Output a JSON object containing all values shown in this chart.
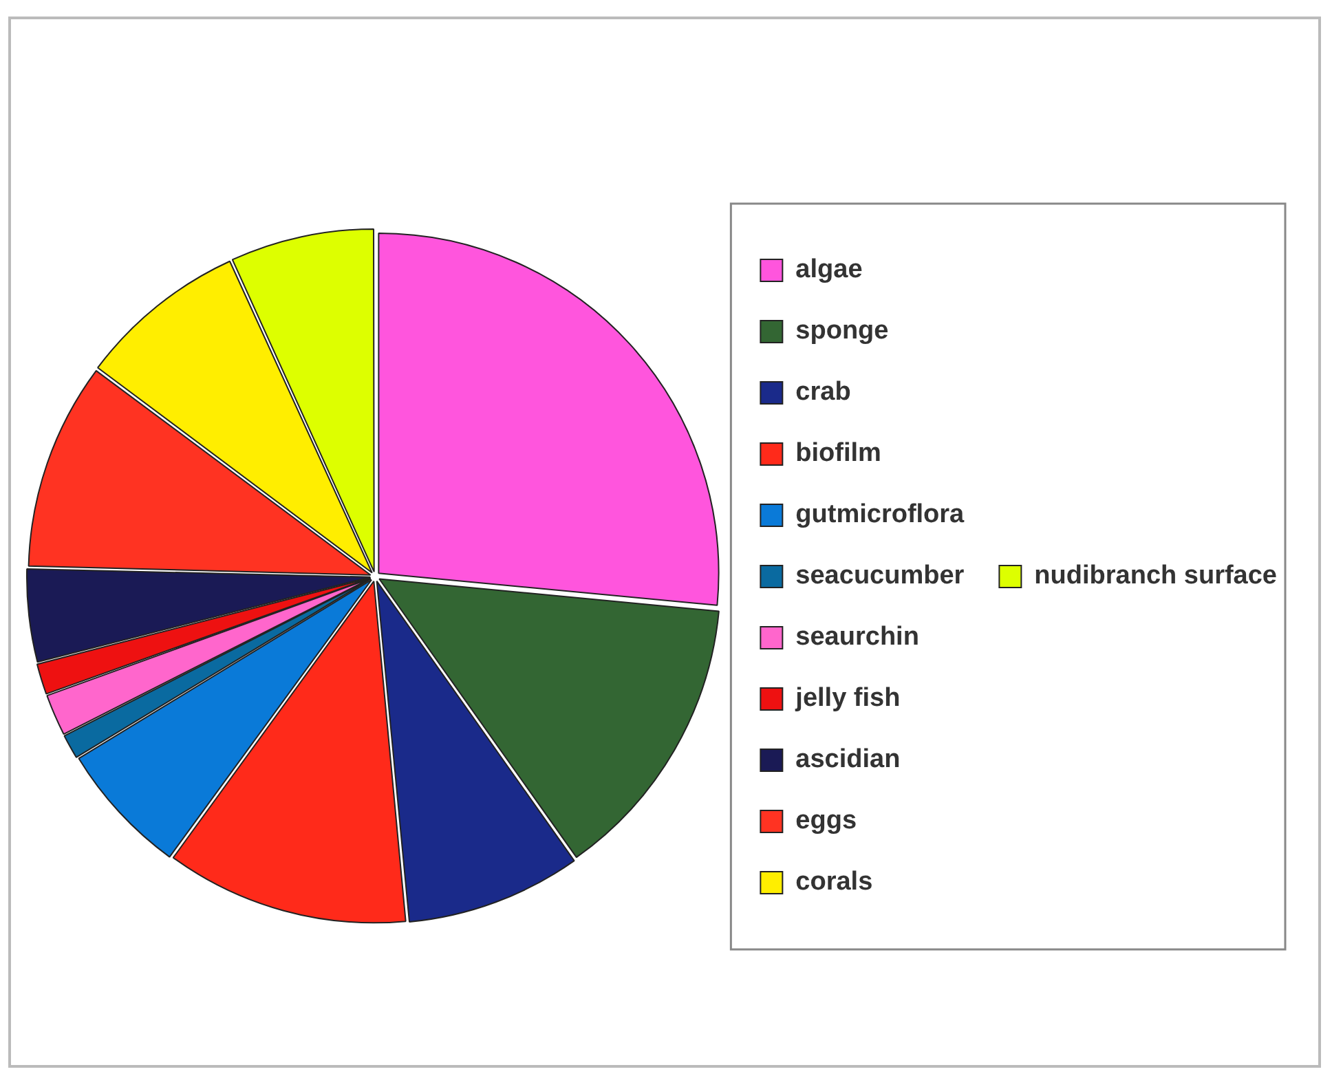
{
  "chart_data": {
    "type": "pie",
    "categories": [
      "algae",
      "sponge",
      "crab",
      "biofilm",
      "gutmicroflora",
      "seacucumber",
      "seaurchin",
      "jelly fish",
      "ascidian",
      "eggs",
      "corals",
      "nudibranch surface"
    ],
    "values": [
      26.5,
      13.7,
      8.3,
      11.5,
      6.3,
      1.2,
      2.0,
      1.5,
      4.4,
      9.8,
      8.0,
      6.8
    ],
    "colors": [
      "#ff55dd",
      "#336633",
      "#1a2a8a",
      "#ff2a1a",
      "#0a7ad8",
      "#0a6aa0",
      "#ff66cc",
      "#ee1111",
      "#1a1a55",
      "#ff3322",
      "#ffee00",
      "#ddff00"
    ],
    "legend": "right"
  }
}
